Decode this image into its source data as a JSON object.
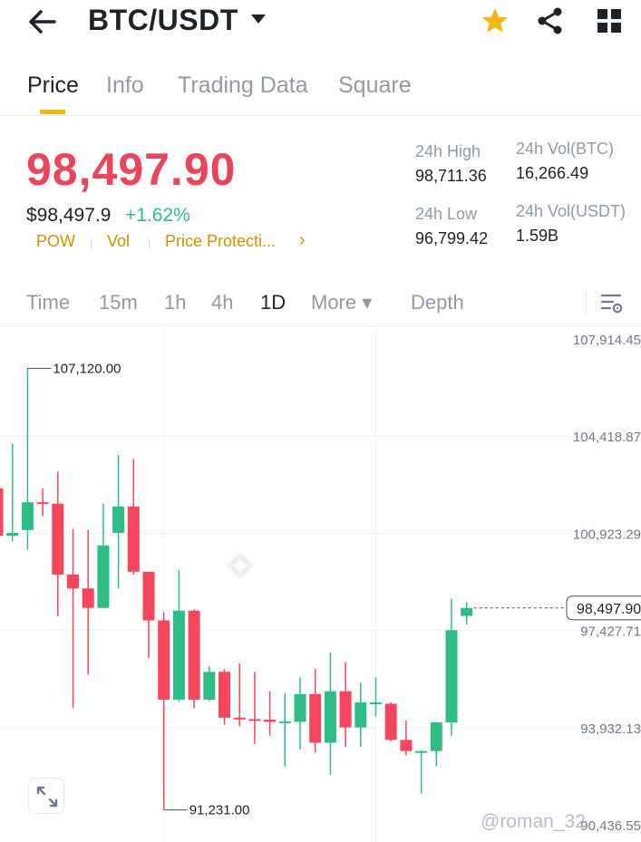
{
  "header": {
    "title": "BTC/USDT"
  },
  "tabs": [
    {
      "label": "Price"
    },
    {
      "label": "Info"
    },
    {
      "label": "Trading Data"
    },
    {
      "label": "Square"
    }
  ],
  "ticker": {
    "last_price": "98,497.90",
    "fiat_price": "$98,497.9",
    "change": "+1.62%",
    "tags": [
      "POW",
      "Vol",
      "Price Protecti..."
    ],
    "tags_more": "›"
  },
  "stats": {
    "high_label": "24h High",
    "high_value": "98,711.36",
    "low_label": "24h Low",
    "low_value": "96,799.42",
    "vol_btc_label": "24h Vol(BTC)",
    "vol_btc_value": "16,266.49",
    "vol_usdt_label": "24h Vol(USDT)",
    "vol_usdt_value": "1.59B"
  },
  "timeframes": [
    {
      "label": "Time"
    },
    {
      "label": "15m"
    },
    {
      "label": "1h"
    },
    {
      "label": "4h"
    },
    {
      "label": "1D"
    },
    {
      "label": "More ▾"
    },
    {
      "label": "Depth"
    }
  ],
  "colors": {
    "up": "#2ebd85",
    "down": "#f6465d",
    "accent": "#f0b90b",
    "star": "#f0b90b"
  },
  "icons": {
    "back": "arrow-left-icon",
    "caret": "caret-down-icon",
    "favorite": "star-icon",
    "share": "share-icon",
    "apps": "grid-icon",
    "chart_settings": "chart-settings-icon",
    "expand": "expand-icon"
  },
  "chart_data": {
    "type": "candlestick",
    "y_ticks": [
      "107,914.45",
      "104,418.87",
      "100,923.29",
      "97,427.71",
      "93,932.13",
      "90,436.55"
    ],
    "ylim": [
      90436.55,
      107914.45
    ],
    "current_price_label": "98,497.90",
    "current_price": 98497.9,
    "max_annotation": "107,120.00",
    "max_value": 107120.0,
    "min_annotation": "91,231.00",
    "min_value": 91231.0,
    "candles": [
      {
        "o": 102800,
        "h": 104350,
        "l": 101120,
        "c": 101100
      },
      {
        "o": 101100,
        "h": 104400,
        "l": 100900,
        "c": 101200
      },
      {
        "o": 101300,
        "h": 107120,
        "l": 100600,
        "c": 102300
      },
      {
        "o": 102300,
        "h": 102800,
        "l": 101800,
        "c": 102250
      },
      {
        "o": 102250,
        "h": 103400,
        "l": 98200,
        "c": 99700
      },
      {
        "o": 99700,
        "h": 101350,
        "l": 94900,
        "c": 99200
      },
      {
        "o": 99200,
        "h": 101300,
        "l": 96100,
        "c": 98500
      },
      {
        "o": 98500,
        "h": 102250,
        "l": 98500,
        "c": 100750
      },
      {
        "o": 101200,
        "h": 104000,
        "l": 99200,
        "c": 102150
      },
      {
        "o": 102150,
        "h": 103850,
        "l": 99700,
        "c": 99800
      },
      {
        "o": 99800,
        "h": 99800,
        "l": 96700,
        "c": 98050
      },
      {
        "o": 98050,
        "h": 98350,
        "l": 91231,
        "c": 95200
      },
      {
        "o": 95200,
        "h": 99870,
        "l": 95120,
        "c": 98400
      },
      {
        "o": 98400,
        "h": 98450,
        "l": 94900,
        "c": 95200
      },
      {
        "o": 95200,
        "h": 96400,
        "l": 95150,
        "c": 96200
      },
      {
        "o": 96200,
        "h": 96300,
        "l": 94300,
        "c": 94550
      },
      {
        "o": 94550,
        "h": 96500,
        "l": 94240,
        "c": 94500
      },
      {
        "o": 94500,
        "h": 96200,
        "l": 93600,
        "c": 94480
      },
      {
        "o": 94480,
        "h": 95500,
        "l": 93900,
        "c": 94400
      },
      {
        "o": 94400,
        "h": 95430,
        "l": 92800,
        "c": 94420
      },
      {
        "o": 94400,
        "h": 96000,
        "l": 93400,
        "c": 95400
      },
      {
        "o": 95400,
        "h": 96300,
        "l": 93300,
        "c": 93650
      },
      {
        "o": 93650,
        "h": 96900,
        "l": 92500,
        "c": 95500
      },
      {
        "o": 95500,
        "h": 96550,
        "l": 93500,
        "c": 94200
      },
      {
        "o": 94200,
        "h": 95800,
        "l": 93500,
        "c": 95100
      },
      {
        "o": 95050,
        "h": 96000,
        "l": 94600,
        "c": 95100
      },
      {
        "o": 95050,
        "h": 95100,
        "l": 93700,
        "c": 93750
      },
      {
        "o": 93750,
        "h": 94450,
        "l": 93200,
        "c": 93350
      },
      {
        "o": 93350,
        "h": 93370,
        "l": 91820,
        "c": 93350
      },
      {
        "o": 93350,
        "h": 94400,
        "l": 92800,
        "c": 94380
      },
      {
        "o": 94380,
        "h": 98830,
        "l": 93900,
        "c": 97700
      },
      {
        "o": 98210,
        "h": 98711.36,
        "l": 97900,
        "c": 98497.9
      }
    ]
  },
  "watermark": "@roman_32"
}
